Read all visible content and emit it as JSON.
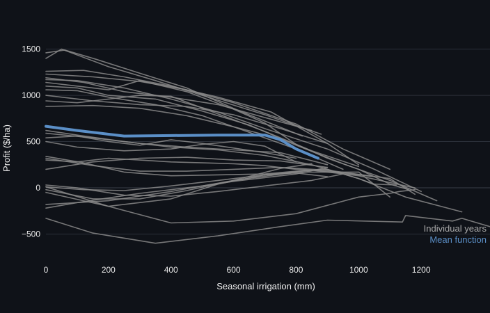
{
  "chart_data": {
    "type": "line",
    "title": "",
    "xlabel": "Seasonal irrigation (mm)",
    "ylabel": "Profit ($/ha)",
    "xlim": [
      0,
      1420
    ],
    "ylim": [
      -790,
      1640
    ],
    "x_ticks": [
      0,
      200,
      400,
      600,
      800,
      1000,
      1200
    ],
    "y_ticks": [
      -500,
      0,
      500,
      1000,
      1500
    ],
    "grid": "horizontal",
    "legend": [
      {
        "label": "Individual years",
        "color": "#aaaaaa"
      },
      {
        "label": "Mean function",
        "color": "#5b8fc7"
      }
    ],
    "series": [
      {
        "name": "Individual years",
        "color": "#8a8a8a",
        "x": [
          0,
          60,
          160,
          300,
          450,
          620,
          820
        ],
        "y": [
          1460,
          1490,
          1390,
          1240,
          1080,
          830,
          560
        ]
      },
      {
        "name": "Individual years",
        "color": "#8a8a8a",
        "x": [
          0,
          50,
          200,
          350,
          500,
          700,
          880
        ],
        "y": [
          1400,
          1500,
          1310,
          1160,
          1000,
          790,
          580
        ]
      },
      {
        "name": "Individual years",
        "color": "#8a8a8a",
        "x": [
          0,
          120,
          250,
          400,
          550,
          720,
          900,
          1000
        ],
        "y": [
          1260,
          1270,
          1200,
          1100,
          980,
          820,
          480,
          250
        ]
      },
      {
        "name": "Individual years",
        "color": "#8a8a8a",
        "x": [
          0,
          150,
          300,
          450,
          600,
          800,
          950,
          1100
        ],
        "y": [
          1230,
          1200,
          1150,
          1060,
          920,
          690,
          420,
          200
        ]
      },
      {
        "name": "Individual years",
        "color": "#8a8a8a",
        "x": [
          0,
          120,
          250,
          400,
          550,
          700,
          850
        ],
        "y": [
          1190,
          1140,
          1040,
          980,
          900,
          760,
          620
        ]
      },
      {
        "name": "Individual years",
        "color": "#8a8a8a",
        "x": [
          0,
          100,
          250,
          400,
          550,
          700,
          900,
          1050,
          1200
        ],
        "y": [
          1170,
          1160,
          1080,
          960,
          820,
          640,
          420,
          200,
          -40
        ]
      },
      {
        "name": "Individual years",
        "color": "#8a8a8a",
        "x": [
          0,
          100,
          200,
          300,
          450,
          600,
          700,
          800,
          900,
          1000,
          1100,
          1160
        ],
        "y": [
          1140,
          1100,
          1060,
          1160,
          1040,
          850,
          700,
          470,
          320,
          200,
          40,
          -20
        ]
      },
      {
        "name": "Individual years",
        "color": "#8a8a8a",
        "x": [
          0,
          100,
          200,
          350,
          500,
          650,
          800,
          950,
          1100,
          1250
        ],
        "y": [
          1100,
          1080,
          1000,
          960,
          830,
          680,
          460,
          260,
          80,
          -140
        ]
      },
      {
        "name": "Individual years",
        "color": "#8a8a8a",
        "x": [
          0,
          100,
          200,
          350,
          500,
          650,
          800,
          950
        ],
        "y": [
          1060,
          1050,
          980,
          900,
          780,
          600,
          420,
          200
        ]
      },
      {
        "name": "Individual years",
        "color": "#8a8a8a",
        "x": [
          0,
          150,
          300,
          450,
          600,
          750,
          900
        ],
        "y": [
          1000,
          940,
          900,
          880,
          790,
          640,
          480
        ]
      },
      {
        "name": "Individual years",
        "color": "#8a8a8a",
        "x": [
          0,
          100,
          200,
          300,
          400,
          550,
          700,
          850,
          1000
        ],
        "y": [
          940,
          920,
          960,
          1000,
          990,
          800,
          610,
          400,
          230
        ]
      },
      {
        "name": "Individual years",
        "color": "#8a8a8a",
        "x": [
          0,
          150,
          300,
          450,
          600,
          750
        ],
        "y": [
          880,
          890,
          860,
          780,
          660,
          530
        ]
      },
      {
        "name": "Individual years",
        "color": "#8a8a8a",
        "x": [
          0,
          100,
          250,
          400,
          550,
          700,
          850,
          1000,
          1150,
          1330
        ],
        "y": [
          620,
          570,
          500,
          440,
          410,
          350,
          250,
          100,
          -100,
          -260
        ]
      },
      {
        "name": "Individual years",
        "color": "#8a8a8a",
        "x": [
          0,
          150,
          300,
          450,
          600,
          750,
          900
        ],
        "y": [
          590,
          540,
          480,
          440,
          410,
          380,
          250
        ]
      },
      {
        "name": "Individual years",
        "color": "#8a8a8a",
        "x": [
          0,
          100,
          200,
          300,
          400,
          500,
          600,
          700,
          800
        ],
        "y": [
          540,
          560,
          500,
          460,
          520,
          480,
          430,
          380,
          320
        ]
      },
      {
        "name": "Individual years",
        "color": "#8a8a8a",
        "x": [
          0,
          100,
          250,
          400,
          500,
          600,
          700,
          800
        ],
        "y": [
          500,
          440,
          400,
          420,
          470,
          500,
          450,
          280
        ]
      },
      {
        "name": "Individual years",
        "color": "#8a8a8a",
        "x": [
          0,
          150,
          300,
          450,
          600,
          750,
          900,
          1100,
          1180
        ],
        "y": [
          320,
          240,
          180,
          180,
          200,
          220,
          190,
          100,
          -70
        ]
      },
      {
        "name": "Individual years",
        "color": "#8a8a8a",
        "x": [
          0,
          100,
          200,
          300,
          400,
          500,
          600,
          700,
          800,
          900,
          1050
        ],
        "y": [
          300,
          280,
          320,
          300,
          280,
          270,
          260,
          240,
          200,
          180,
          120
        ]
      },
      {
        "name": "Individual years",
        "color": "#8a8a8a",
        "x": [
          0,
          120,
          250,
          400,
          550,
          700,
          800,
          900,
          1000,
          1050,
          1120
        ],
        "y": [
          340,
          270,
          170,
          130,
          140,
          150,
          180,
          200,
          100,
          40,
          30
        ]
      },
      {
        "name": "Individual years",
        "color": "#8a8a8a",
        "x": [
          0,
          150,
          300,
          450,
          600,
          750,
          900
        ],
        "y": [
          200,
          280,
          320,
          330,
          300,
          290,
          220
        ]
      },
      {
        "name": "Individual years",
        "color": "#8a8a8a",
        "x": [
          0,
          100,
          250,
          400,
          550,
          700,
          850,
          950
        ],
        "y": [
          30,
          0,
          -80,
          -90,
          -40,
          20,
          80,
          150
        ]
      },
      {
        "name": "Individual years",
        "color": "#8a8a8a",
        "x": [
          0,
          120,
          250,
          400,
          550,
          700,
          800,
          900
        ],
        "y": [
          10,
          -20,
          -30,
          20,
          80,
          140,
          160,
          120
        ]
      },
      {
        "name": "Individual years",
        "color": "#8a8a8a",
        "x": [
          0,
          150,
          300,
          450,
          600,
          750,
          850
        ],
        "y": [
          -20,
          -120,
          -120,
          -30,
          80,
          210,
          260
        ]
      },
      {
        "name": "Individual years",
        "color": "#8a8a8a",
        "x": [
          0,
          200,
          400,
          550,
          700,
          850,
          1000,
          1150,
          1180
        ],
        "y": [
          -50,
          -200,
          -120,
          40,
          140,
          190,
          130,
          20,
          0
        ]
      },
      {
        "name": "Individual years",
        "color": "#8a8a8a",
        "x": [
          0,
          200,
          400,
          600,
          800,
          1000,
          1100
        ],
        "y": [
          -180,
          -140,
          -40,
          80,
          170,
          170,
          -100
        ]
      },
      {
        "name": "Individual years",
        "color": "#8a8a8a",
        "x": [
          0,
          100,
          200,
          300,
          400,
          500,
          600,
          700,
          800,
          900
        ],
        "y": [
          -220,
          -160,
          -110,
          -60,
          -20,
          20,
          70,
          110,
          150,
          220
        ]
      },
      {
        "name": "Individual years",
        "color": "#8a8a8a",
        "x": [
          0,
          200,
          400,
          600,
          800,
          1000,
          1100,
          1130,
          1180
        ],
        "y": [
          10,
          -200,
          -380,
          -360,
          -280,
          -100,
          -60,
          -40,
          -20
        ]
      },
      {
        "name": "Individual years",
        "color": "#8a8a8a",
        "x": [
          0,
          150,
          350,
          550,
          750,
          900,
          1140,
          1150,
          1300,
          1330,
          1420
        ],
        "y": [
          -330,
          -490,
          -600,
          -520,
          -420,
          -350,
          -370,
          -300,
          -360,
          -330,
          -420
        ]
      },
      {
        "name": "Mean function",
        "color": "#5b8fc7",
        "width": 4,
        "x": [
          0,
          100,
          250,
          400,
          550,
          700,
          750,
          800,
          870
        ],
        "y": [
          665,
          620,
          560,
          565,
          570,
          570,
          520,
          420,
          320
        ]
      }
    ]
  }
}
